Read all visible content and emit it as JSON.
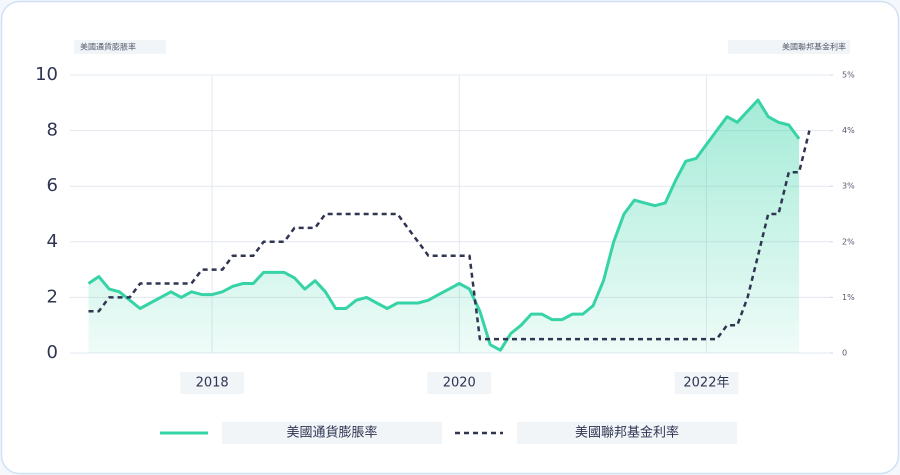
{
  "chart_data": {
    "type": "line",
    "ylabel": "美國通貨膨脹率",
    "y2label": "美國聯邦基金利率",
    "x": [
      2017,
      2017.083,
      2017.167,
      2017.25,
      2017.333,
      2017.417,
      2017.5,
      2017.583,
      2017.667,
      2017.75,
      2017.833,
      2017.917,
      2018,
      2018.083,
      2018.167,
      2018.25,
      2018.333,
      2018.417,
      2018.5,
      2018.583,
      2018.667,
      2018.75,
      2018.833,
      2018.917,
      2019,
      2019.083,
      2019.167,
      2019.25,
      2019.333,
      2019.417,
      2019.5,
      2019.583,
      2019.667,
      2019.75,
      2019.833,
      2019.917,
      2020,
      2020.083,
      2020.167,
      2020.25,
      2020.333,
      2020.417,
      2020.5,
      2020.583,
      2020.667,
      2020.75,
      2020.833,
      2020.917,
      2021,
      2021.083,
      2021.167,
      2021.25,
      2021.333,
      2021.417,
      2021.5,
      2021.583,
      2021.667,
      2021.75,
      2021.833,
      2021.917,
      2022,
      2022.083,
      2022.167,
      2022.25,
      2022.333,
      2022.417,
      2022.5,
      2022.583,
      2022.667,
      2022.75,
      2022.833
    ],
    "xlim": [
      2016.85,
      2023
    ],
    "xticks": [
      2018,
      2020,
      {
        "value": 2022,
        "label": "2022年"
      }
    ],
    "ylim": [
      0,
      10
    ],
    "yticks": [
      0,
      2,
      4,
      6,
      8,
      10
    ],
    "y2lim": [
      0,
      5
    ],
    "y2ticks": [
      0,
      {
        "value": 1,
        "label": "1%"
      },
      {
        "value": 2,
        "label": "2%"
      },
      {
        "value": 3,
        "label": "3%"
      },
      {
        "value": 4,
        "label": "4%"
      },
      {
        "value": 5,
        "label": "5%"
      }
    ],
    "grid": true,
    "legend": "bottom",
    "series": [
      {
        "name": "美國通貨膨脹率",
        "color": "#36d3a6",
        "fill": true,
        "values": [
          2.5,
          2.75,
          2.3,
          2.2,
          1.9,
          1.6,
          1.8,
          2.0,
          2.2,
          2.0,
          2.2,
          2.1,
          2.1,
          2.2,
          2.4,
          2.5,
          2.5,
          2.9,
          2.9,
          2.9,
          2.7,
          2.3,
          2.6,
          2.2,
          1.6,
          1.6,
          1.9,
          2.0,
          1.8,
          1.6,
          1.8,
          1.8,
          1.8,
          1.9,
          2.1,
          2.3,
          2.5,
          2.3,
          1.5,
          0.3,
          0.1,
          0.7,
          1.0,
          1.4,
          1.4,
          1.2,
          1.2,
          1.4,
          1.4,
          1.7,
          2.6,
          4.0,
          5.0,
          5.5,
          5.4,
          5.3,
          5.4,
          6.2,
          6.9,
          7.0,
          7.5,
          8.0,
          8.5,
          8.3,
          8.7,
          9.1,
          8.5,
          8.3,
          8.2,
          7.7,
          null
        ]
      },
      {
        "name": "美國聯邦基金利率",
        "color": "#2f3552",
        "dashed": true,
        "axis": "y2",
        "values": [
          0.75,
          0.75,
          1.0,
          1.0,
          1.0,
          1.25,
          1.25,
          1.25,
          1.25,
          1.25,
          1.25,
          1.5,
          1.5,
          1.5,
          1.75,
          1.75,
          1.75,
          2.0,
          2.0,
          2.0,
          2.25,
          2.25,
          2.25,
          2.5,
          2.5,
          2.5,
          2.5,
          2.5,
          2.5,
          2.5,
          2.5,
          2.25,
          2.0,
          1.75,
          1.75,
          1.75,
          1.75,
          1.75,
          0.25,
          0.25,
          0.25,
          0.25,
          0.25,
          0.25,
          0.25,
          0.25,
          0.25,
          0.25,
          0.25,
          0.25,
          0.25,
          0.25,
          0.25,
          0.25,
          0.25,
          0.25,
          0.25,
          0.25,
          0.25,
          0.25,
          0.25,
          0.25,
          0.5,
          0.5,
          1.0,
          1.75,
          2.5,
          2.5,
          3.25,
          3.25,
          4.0
        ]
      }
    ]
  }
}
